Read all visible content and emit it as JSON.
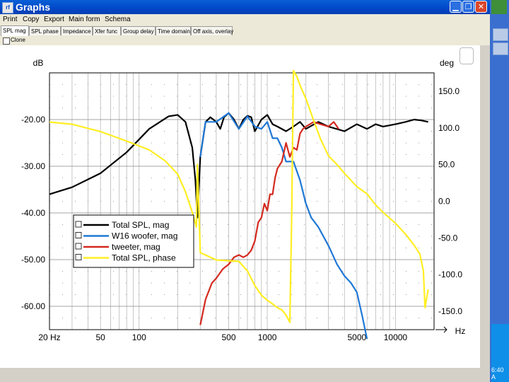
{
  "window": {
    "title": "Graphs",
    "app_icon": "rf"
  },
  "menu": {
    "items": [
      "Print",
      "Copy",
      "Export",
      "Main form",
      "Schema"
    ]
  },
  "tabs": {
    "items": [
      "SPL mag",
      "SPL phase",
      "Impedance",
      "Xfer func",
      "Group delay",
      "Time domain",
      "Off axis, overlay"
    ],
    "active": 0
  },
  "clone": {
    "label": "Clone"
  },
  "taskbar": {
    "clock": "6:40 A"
  },
  "chart_data": {
    "type": "line",
    "x_scale": "log",
    "xlim": [
      20,
      20000
    ],
    "ylim": [
      -65,
      -10
    ],
    "y2lim": [
      -175,
      175
    ],
    "ylabel": "dB",
    "y2label": "deg",
    "xlabel": "Hz",
    "x_ticks": [
      {
        "v": 20,
        "l": "20 Hz"
      },
      {
        "v": 50,
        "l": "50"
      },
      {
        "v": 100,
        "l": "100"
      },
      {
        "v": 500,
        "l": "500"
      },
      {
        "v": 1000,
        "l": "1000"
      },
      {
        "v": 5000,
        "l": "5000"
      },
      {
        "v": 10000,
        "l": "10000"
      }
    ],
    "y_ticks": [
      {
        "v": -20,
        "l": "-20.00"
      },
      {
        "v": -30,
        "l": "-30.00"
      },
      {
        "v": -40,
        "l": "-40.00"
      },
      {
        "v": -50,
        "l": "-50.00"
      },
      {
        "v": -60,
        "l": "-60.00"
      }
    ],
    "y2_ticks": [
      {
        "v": 150,
        "l": "150.0"
      },
      {
        "v": 100,
        "l": "100.0"
      },
      {
        "v": 50,
        "l": "50.0"
      },
      {
        "v": 0,
        "l": "0.0"
      },
      {
        "v": -50,
        "l": "-50.0"
      },
      {
        "v": -100,
        "l": "-100.0"
      },
      {
        "v": -150,
        "l": "-150.0"
      }
    ],
    "grid": true,
    "legend": "bottom-left",
    "series": [
      {
        "name": "Total SPL, mag",
        "color": "#000000",
        "axis": "left",
        "x": [
          20,
          30,
          50,
          80,
          120,
          170,
          200,
          230,
          260,
          275,
          285,
          300,
          330,
          360,
          400,
          430,
          460,
          500,
          550,
          600,
          650,
          700,
          750,
          800,
          900,
          1000,
          1100,
          1200,
          1400,
          1600,
          1800,
          2000,
          2500,
          3000,
          4000,
          5000,
          6000,
          7000,
          8000,
          10000,
          12000,
          14000,
          16000,
          18000
        ],
        "y": [
          -36,
          -34.5,
          -31.5,
          -27,
          -22,
          -19.3,
          -19,
          -20.5,
          -26,
          -33,
          -41,
          -28,
          -20.5,
          -19.5,
          -20.5,
          -22,
          -19.5,
          -18.6,
          -20,
          -22,
          -20,
          -19.2,
          -19.5,
          -22.5,
          -20,
          -19,
          -21,
          -21.5,
          -22.5,
          -21.5,
          -20.5,
          -22,
          -20.5,
          -21.5,
          -22.5,
          -21,
          -22,
          -21,
          -21.5,
          -21,
          -20.5,
          -20,
          -20.2,
          -20.5
        ]
      },
      {
        "name": "W16 woofer, mag",
        "color": "#1f78d6",
        "axis": "left",
        "x": [
          300,
          330,
          400,
          500,
          600,
          700,
          800,
          900,
          1000,
          1100,
          1200,
          1300,
          1400,
          1500,
          1600,
          1800,
          2000,
          2200,
          2500,
          3000,
          3500,
          4000,
          4500,
          5000,
          5500,
          6000
        ],
        "y": [
          -28,
          -20.5,
          -20.5,
          -18.6,
          -22,
          -19.3,
          -21.5,
          -22,
          -20.5,
          -24,
          -24,
          -26,
          -29,
          -29,
          -29,
          -33,
          -38,
          -41,
          -43,
          -47,
          -51,
          -53.5,
          -55,
          -57,
          -62,
          -67
        ]
      },
      {
        "name": "tweeter, mag",
        "color": "#d42a1f",
        "axis": "left",
        "x": [
          300,
          330,
          370,
          400,
          450,
          500,
          550,
          600,
          650,
          700,
          750,
          800,
          850,
          900,
          950,
          1000,
          1050,
          1100,
          1150,
          1200,
          1300,
          1400,
          1500,
          1600,
          1700,
          1800,
          1900,
          2000,
          2300,
          2600,
          3000,
          3300,
          3600
        ],
        "y": [
          -64,
          -58.5,
          -55,
          -54,
          -52,
          -51,
          -49.5,
          -49,
          -49.5,
          -49,
          -48,
          -46,
          -42,
          -41,
          -38,
          -39.5,
          -36,
          -36,
          -32.5,
          -30.5,
          -29,
          -25,
          -28,
          -26,
          -26.5,
          -23,
          -22,
          -21.5,
          -20.5,
          -21,
          -21.5,
          -20.5,
          -22
        ]
      },
      {
        "name": "Total SPL, phase",
        "color": "#ffee22",
        "axis": "right",
        "x": [
          20,
          30,
          50,
          80,
          120,
          160,
          200,
          230,
          260,
          280,
          285,
          300,
          400,
          600,
          700,
          800,
          900,
          1000,
          1100,
          1200,
          1300,
          1400,
          1500,
          1550,
          1600,
          1700,
          1800,
          2000,
          2300,
          2600,
          3000,
          3500,
          4000,
          5000,
          6000,
          7000,
          8000,
          10000,
          12000,
          14000,
          15500,
          16500,
          17000,
          18000
        ],
        "y": [
          108,
          105,
          95,
          82,
          70,
          55,
          37,
          13,
          -15,
          -35,
          50,
          -70,
          -80,
          -82,
          -95,
          -115,
          -128,
          -135,
          -140,
          -145,
          -148,
          -155,
          -165,
          -20,
          178,
          170,
          158,
          140,
          110,
          85,
          62,
          50,
          38,
          20,
          10,
          -5,
          -15,
          -30,
          -45,
          -60,
          -72,
          -95,
          -145,
          -120
        ]
      }
    ]
  }
}
